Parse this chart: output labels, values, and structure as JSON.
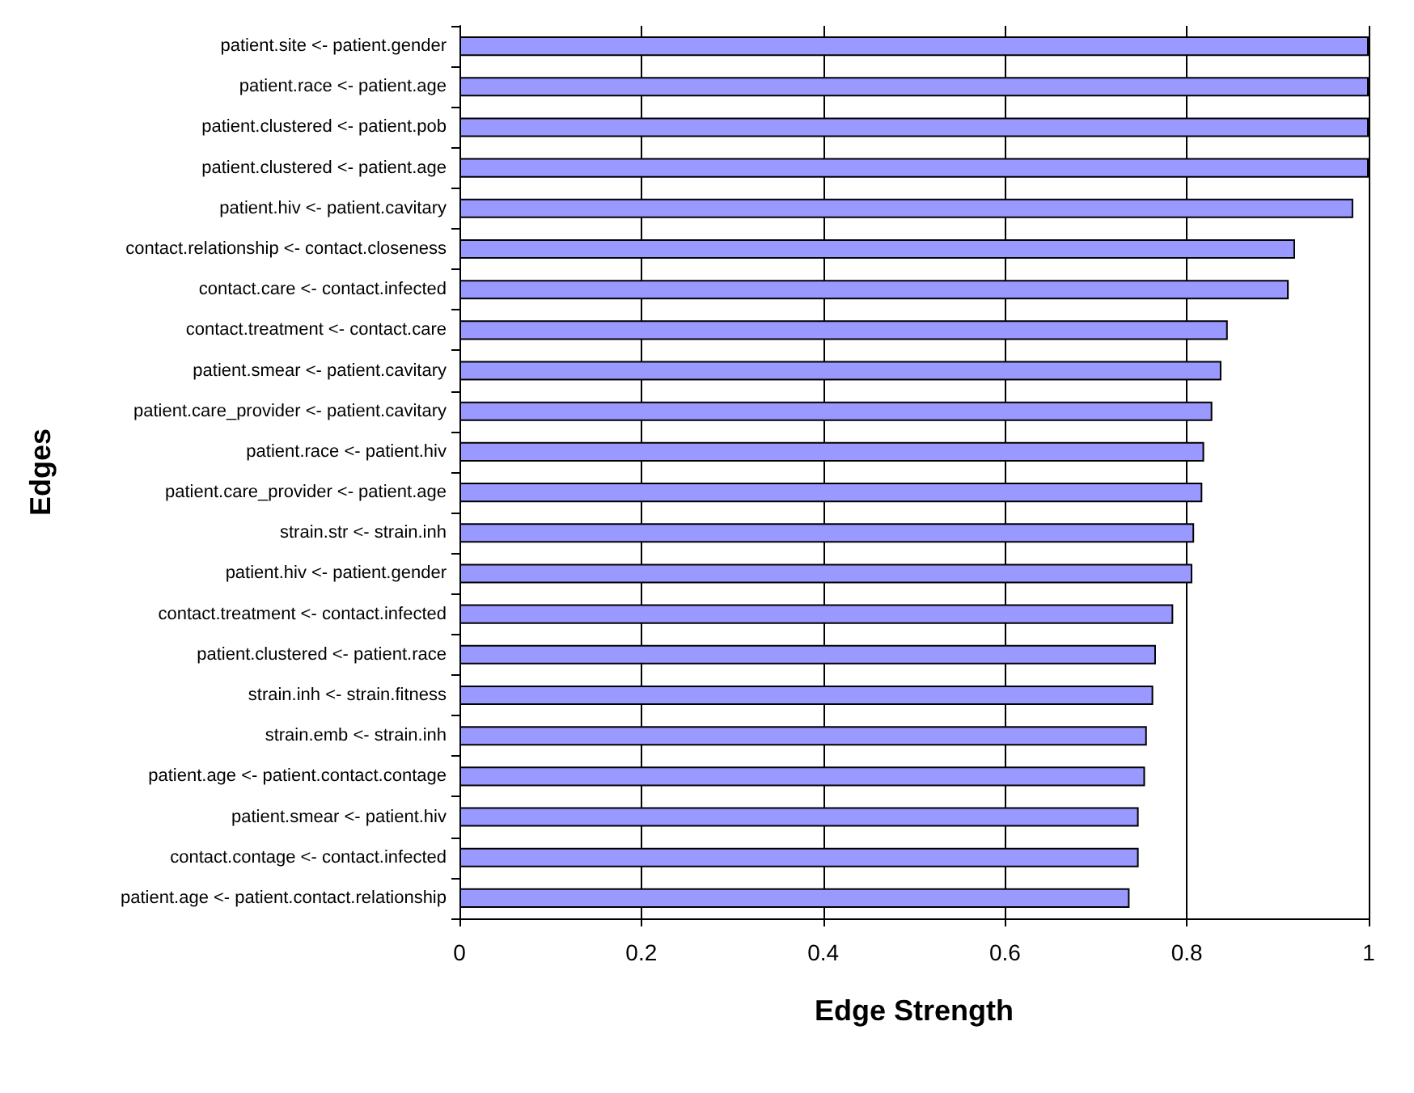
{
  "chart_data": {
    "type": "bar",
    "orientation": "horizontal",
    "xlabel": "Edge Strength",
    "ylabel": "Edges",
    "categories": [
      "patient.site <- patient.gender",
      "patient.race <- patient.age",
      "patient.clustered <- patient.pob",
      "patient.clustered <- patient.age",
      "patient.hiv <- patient.cavitary",
      "contact.relationship <- contact.closeness",
      "contact.care <- contact.infected",
      "contact.treatment <- contact.care",
      "patient.smear <- patient.cavitary",
      "patient.care_provider <- patient.cavitary",
      "patient.race <- patient.hiv",
      "patient.care_provider <- patient.age",
      "strain.str <- strain.inh",
      "patient.hiv <- patient.gender",
      "contact.treatment <- contact.infected",
      "patient.clustered <- patient.race",
      "strain.inh <- strain.fitness",
      "strain.emb <- strain.inh",
      "patient.age <- patient.contact.contage",
      "patient.smear <- patient.hiv",
      "contact.contage <- contact.infected",
      "patient.age <- patient.contact.relationship"
    ],
    "values": [
      1,
      1,
      1,
      1,
      0.983,
      0.919,
      0.912,
      0.845,
      0.838,
      0.828,
      0.819,
      0.817,
      0.808,
      0.806,
      0.785,
      0.766,
      0.763,
      0.756,
      0.754,
      0.747,
      0.747,
      0.737
    ],
    "color": "#9999ff",
    "xlim": [
      0,
      1
    ],
    "xticks": [
      0,
      0.2,
      0.4,
      0.6,
      0.8,
      1
    ],
    "grid": "x"
  }
}
